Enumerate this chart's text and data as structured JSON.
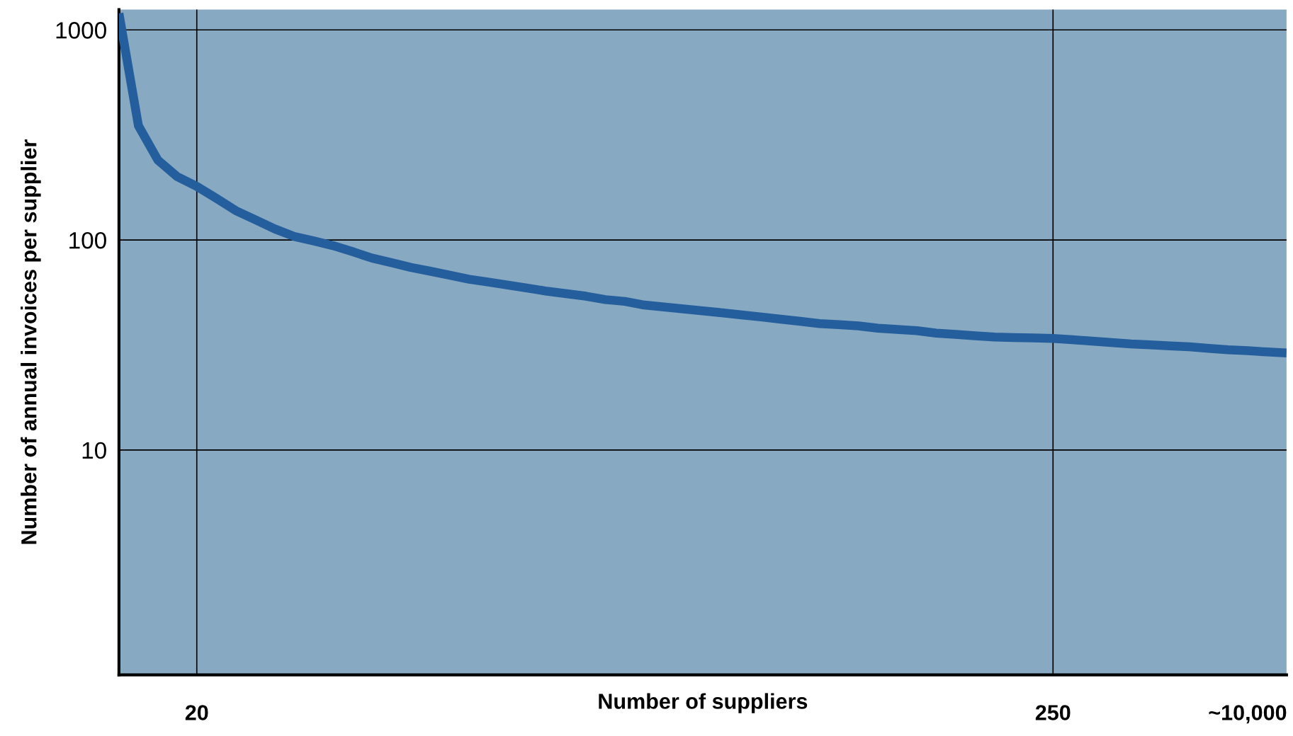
{
  "chart_data": {
    "type": "line",
    "xlabel": "Number of suppliers",
    "ylabel": "Number of annual invoices per supplier",
    "categories": [
      null,
      null,
      null,
      null,
      "20",
      null,
      null,
      null,
      null,
      null,
      null,
      null,
      null,
      null,
      null,
      null,
      null,
      null,
      null,
      null,
      null,
      null,
      null,
      null,
      null,
      null,
      null,
      null,
      null,
      null,
      null,
      null,
      null,
      null,
      null,
      null,
      null,
      null,
      null,
      null,
      null,
      null,
      null,
      null,
      null,
      null,
      null,
      null,
      "250",
      null,
      null,
      null,
      null,
      null,
      null,
      null,
      null,
      null,
      "~10,000",
      null,
      null
    ],
    "series": [
      {
        "color": "#255e9c",
        "values": [
          1200,
          350,
          240,
          200,
          180,
          158,
          138,
          125,
          113,
          104,
          99,
          94,
          88,
          82,
          78,
          74,
          71,
          68,
          65,
          63,
          61,
          59,
          57,
          55.5,
          54,
          52,
          51,
          49,
          48,
          47,
          46,
          45,
          44,
          43,
          42,
          41,
          40,
          39.5,
          39,
          38,
          37.5,
          37,
          36,
          35.5,
          35,
          34.5,
          34.3,
          34.2,
          34,
          33.5,
          33,
          32.5,
          32,
          31.7,
          31.3,
          31,
          30.5,
          30,
          29.7,
          29.3,
          29
        ]
      }
    ],
    "ylim": [
      0.85,
      1250
    ],
    "yticks": [
      10,
      100,
      1000
    ],
    "log": "y",
    "grid": "y",
    "marker": "none",
    "line_style": "solid",
    "ref_lines": [
      {
        "axis": "x",
        "value": "20",
        "color": "#000000"
      },
      {
        "axis": "x",
        "value": "250",
        "color": "#000000"
      }
    ]
  }
}
